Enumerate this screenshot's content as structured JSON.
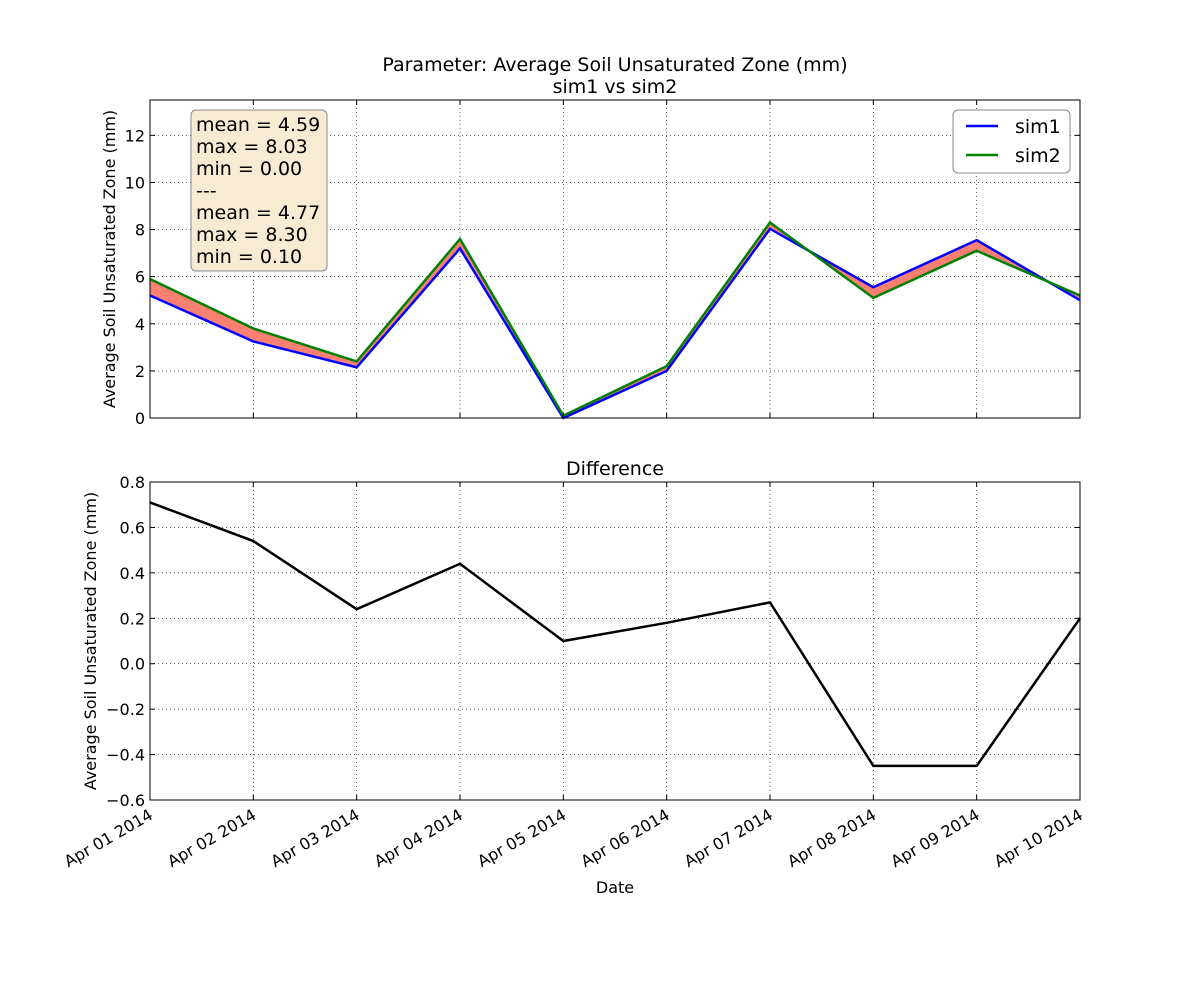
{
  "figure": {
    "title_line1": "Parameter: Average Soil Unsaturated Zone (mm)",
    "title_line2": "sim1 vs sim2"
  },
  "stats_box": {
    "lines": [
      "mean = 4.59",
      "max = 8.03",
      "min = 0.00",
      "---",
      "mean = 4.77",
      "max = 8.30",
      "min = 0.10"
    ],
    "background": "#f9ebd3"
  },
  "chart_data": [
    {
      "type": "line",
      "title": "",
      "xlabel": "",
      "ylabel": "Average Soil Unsaturated Zone (mm)",
      "x": [
        "Apr 01 2014",
        "Apr 02 2014",
        "Apr 03 2014",
        "Apr 04 2014",
        "Apr 05 2014",
        "Apr 06 2014",
        "Apr 07 2014",
        "Apr 08 2014",
        "Apr 09 2014",
        "Apr 10 2014"
      ],
      "series": [
        {
          "name": "sim1",
          "color": "#0000ff",
          "values": [
            5.2,
            3.25,
            2.15,
            7.2,
            0.0,
            2.0,
            8.03,
            5.55,
            7.55,
            5.0
          ]
        },
        {
          "name": "sim2",
          "color": "#008000",
          "values": [
            5.9,
            3.8,
            2.4,
            7.6,
            0.1,
            2.2,
            8.3,
            5.1,
            7.1,
            5.2
          ]
        }
      ],
      "fill_between": {
        "color": "#fa8072"
      },
      "ylim": [
        0,
        13.5
      ],
      "yticks": [
        0,
        2,
        4,
        6,
        8,
        10,
        12
      ],
      "grid": true,
      "legend": "top-right"
    },
    {
      "type": "line",
      "title": "Difference",
      "xlabel": "Date",
      "ylabel": "Average Soil Unsaturated Zone (mm)",
      "x": [
        "Apr 01 2014",
        "Apr 02 2014",
        "Apr 03 2014",
        "Apr 04 2014",
        "Apr 05 2014",
        "Apr 06 2014",
        "Apr 07 2014",
        "Apr 08 2014",
        "Apr 09 2014",
        "Apr 10 2014"
      ],
      "series": [
        {
          "color": "#000000",
          "values": [
            0.71,
            0.54,
            0.24,
            0.44,
            0.1,
            0.18,
            0.27,
            -0.45,
            -0.45,
            0.2
          ]
        }
      ],
      "ylim": [
        -0.6,
        0.8
      ],
      "yticks": [
        -0.6,
        -0.4,
        -0.2,
        0.0,
        0.2,
        0.4,
        0.6,
        0.8
      ],
      "ytick_labels": [
        "−0.6",
        "−0.4",
        "−0.2",
        "0.0",
        "0.2",
        "0.4",
        "0.6",
        "0.8"
      ],
      "grid": true
    }
  ]
}
